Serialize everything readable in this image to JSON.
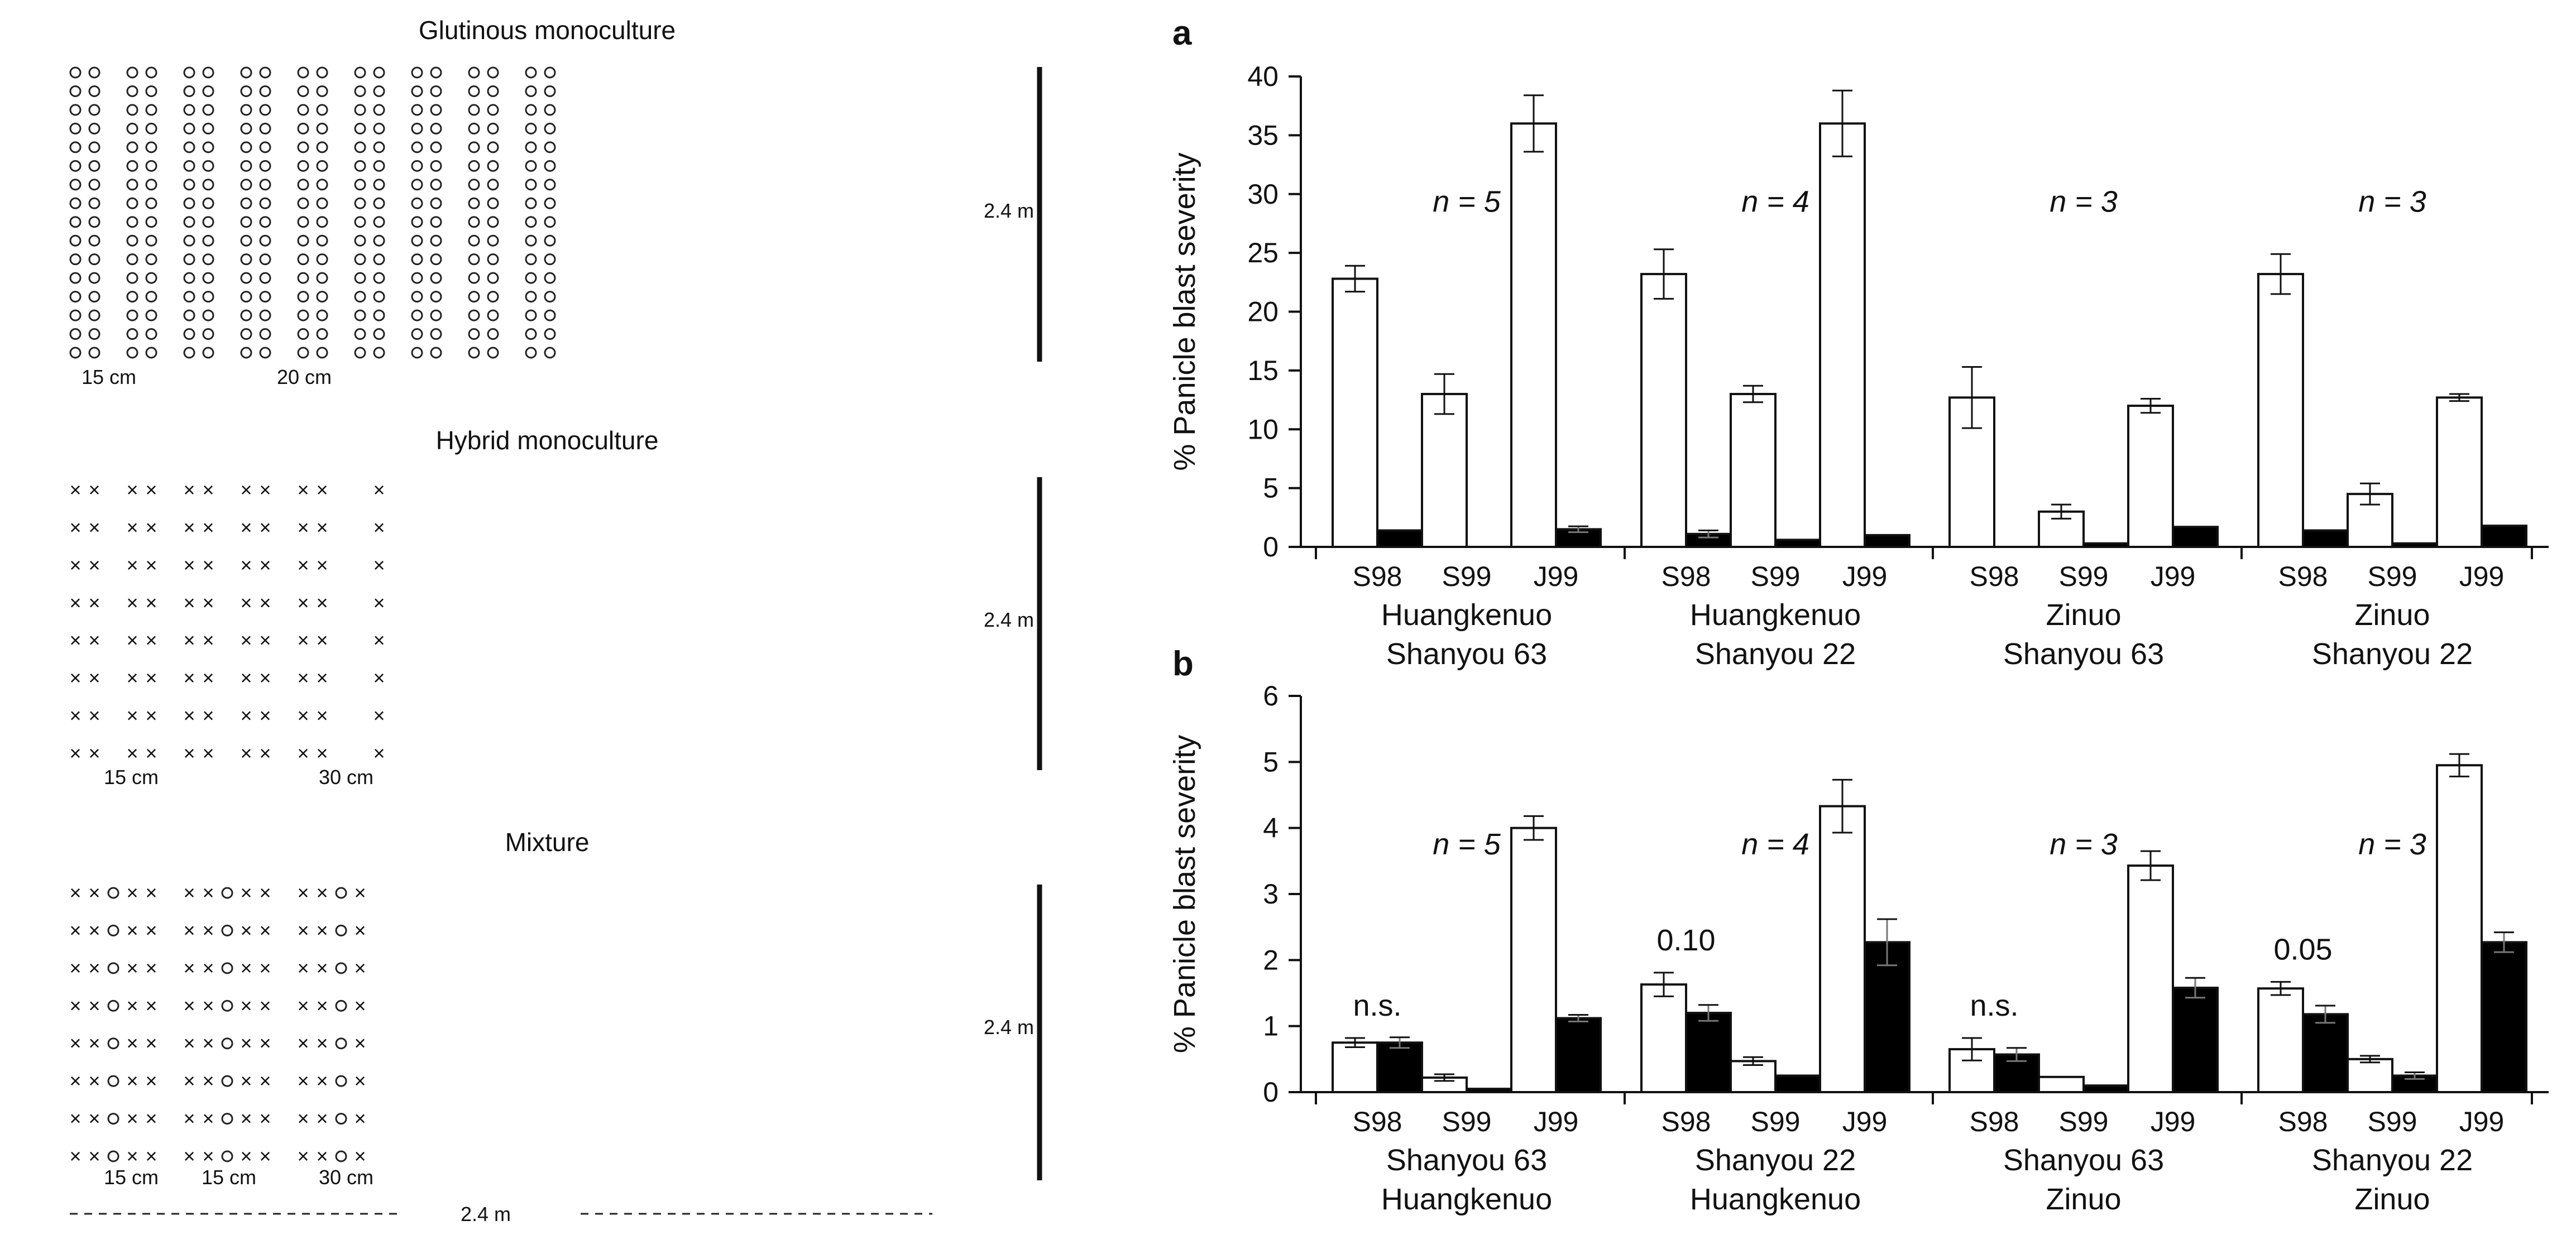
{
  "layout_diagram": {
    "panels": [
      {
        "title": "Glutinous monoculture",
        "scale_label": "2.4 m",
        "spacing_labels": [
          "15 cm",
          "20 cm"
        ],
        "pattern": [
          "o",
          "o",
          "",
          "o",
          "o",
          "",
          "o",
          "o",
          "",
          "o",
          "o",
          "",
          "o",
          "o",
          "",
          "o",
          "o",
          "",
          "o",
          "o",
          "",
          "o",
          "o",
          "",
          "o",
          "o"
        ],
        "rows": 16
      },
      {
        "title": "Hybrid monoculture",
        "scale_label": "2.4 m",
        "spacing_labels": [
          "15 cm",
          "30 cm"
        ],
        "pattern": [
          "x",
          "x",
          "",
          "x",
          "x",
          "",
          "x",
          "x",
          "",
          "x",
          "x",
          "",
          "x",
          "x",
          "",
          "",
          "x"
        ],
        "rows": 8
      },
      {
        "title": "Mixture",
        "scale_label": "2.4 m",
        "spacing_labels": [
          "15 cm",
          "15 cm",
          "30 cm"
        ],
        "pattern": [
          "x",
          "x",
          "o",
          "x",
          "x",
          "",
          "x",
          "x",
          "o",
          "x",
          "x",
          "",
          "x",
          "x",
          "o",
          "x"
        ],
        "rows": 8,
        "bottom_label": "2.4 m"
      }
    ]
  },
  "chart_data": [
    {
      "type": "bar",
      "panel_label": "a",
      "ylabel": "% Panicle blast severity",
      "ylim": [
        0,
        40
      ],
      "yticks": [
        0,
        5,
        10,
        15,
        20,
        25,
        30,
        35,
        40
      ],
      "series": [
        {
          "name": "",
          "color": "#ffffff"
        },
        {
          "name": "",
          "color": "#000000"
        }
      ],
      "groups": [
        {
          "label_lines": [
            "Huangkenuo",
            "Shanyou 63"
          ],
          "n_label": "n = 5",
          "annotation": "",
          "subgroups": [
            {
              "label": "S98",
              "values": [
                22.8,
                1.4
              ],
              "errors": [
                1.1,
                0.0
              ]
            },
            {
              "label": "S99",
              "values": [
                13.0,
                0.0
              ],
              "errors": [
                1.7,
                0.0
              ]
            },
            {
              "label": "J99",
              "values": [
                36.0,
                1.5
              ],
              "errors": [
                2.4,
                0.25
              ]
            }
          ]
        },
        {
          "label_lines": [
            "Huangkenuo",
            "Shanyou 22"
          ],
          "n_label": "n = 4",
          "annotation": "",
          "subgroups": [
            {
              "label": "S98",
              "values": [
                23.2,
                1.1
              ],
              "errors": [
                2.1,
                0.3
              ]
            },
            {
              "label": "S99",
              "values": [
                13.0,
                0.6
              ],
              "errors": [
                0.7,
                0.0
              ]
            },
            {
              "label": "J99",
              "values": [
                36.0,
                1.0
              ],
              "errors": [
                2.8,
                0.0
              ]
            }
          ]
        },
        {
          "label_lines": [
            "Zinuo",
            "Shanyou 63"
          ],
          "n_label": "n = 3",
          "annotation": "",
          "subgroups": [
            {
              "label": "S98",
              "values": [
                12.7,
                0.0
              ],
              "errors": [
                2.6,
                0.0
              ]
            },
            {
              "label": "S99",
              "values": [
                3.0,
                0.3
              ],
              "errors": [
                0.6,
                0.0
              ]
            },
            {
              "label": "J99",
              "values": [
                12.0,
                1.7
              ],
              "errors": [
                0.6,
                0.0
              ]
            }
          ]
        },
        {
          "label_lines": [
            "Zinuo",
            "Shanyou 22"
          ],
          "n_label": "n = 3",
          "annotation": "",
          "subgroups": [
            {
              "label": "S98",
              "values": [
                23.2,
                1.4
              ],
              "errors": [
                1.7,
                0.0
              ]
            },
            {
              "label": "S99",
              "values": [
                4.5,
                0.3
              ],
              "errors": [
                0.9,
                0.0
              ]
            },
            {
              "label": "J99",
              "values": [
                12.7,
                1.8
              ],
              "errors": [
                0.3,
                0.0
              ]
            }
          ]
        }
      ]
    },
    {
      "type": "bar",
      "panel_label": "b",
      "ylabel": "% Panicle blast severity",
      "ylim": [
        0,
        6
      ],
      "yticks": [
        0,
        1,
        2,
        3,
        4,
        5,
        6
      ],
      "series": [
        {
          "name": "",
          "color": "#ffffff"
        },
        {
          "name": "",
          "color": "#000000"
        }
      ],
      "groups": [
        {
          "label_lines": [
            "Shanyou 63",
            "Huangkenuo"
          ],
          "n_label": "n = 5",
          "annotation": "n.s.",
          "subgroups": [
            {
              "label": "S98",
              "values": [
                0.75,
                0.75
              ],
              "errors": [
                0.07,
                0.08
              ]
            },
            {
              "label": "S99",
              "values": [
                0.22,
                0.05
              ],
              "errors": [
                0.05,
                0.0
              ]
            },
            {
              "label": "J99",
              "values": [
                4.0,
                1.12
              ],
              "errors": [
                0.18,
                0.05
              ]
            }
          ]
        },
        {
          "label_lines": [
            "Shanyou 22",
            "Huangkenuo"
          ],
          "n_label": "n = 4",
          "annotation": "0.10",
          "subgroups": [
            {
              "label": "S98",
              "values": [
                1.63,
                1.2
              ],
              "errors": [
                0.18,
                0.12
              ]
            },
            {
              "label": "S99",
              "values": [
                0.47,
                0.25
              ],
              "errors": [
                0.06,
                0.0
              ]
            },
            {
              "label": "J99",
              "values": [
                4.33,
                2.27
              ],
              "errors": [
                0.4,
                0.35
              ]
            }
          ]
        },
        {
          "label_lines": [
            "Shanyou 63",
            "Zinuo"
          ],
          "n_label": "n = 3",
          "annotation": "n.s.",
          "subgroups": [
            {
              "label": "S98",
              "values": [
                0.65,
                0.57
              ],
              "errors": [
                0.17,
                0.1
              ]
            },
            {
              "label": "S99",
              "values": [
                0.23,
                0.1
              ],
              "errors": [
                0.0,
                0.0
              ]
            },
            {
              "label": "J99",
              "values": [
                3.43,
                1.58
              ],
              "errors": [
                0.22,
                0.15
              ]
            }
          ]
        },
        {
          "label_lines": [
            "Shanyou 22",
            "Zinuo"
          ],
          "n_label": "n = 3",
          "annotation": "0.05",
          "subgroups": [
            {
              "label": "S98",
              "values": [
                1.57,
                1.18
              ],
              "errors": [
                0.1,
                0.13
              ]
            },
            {
              "label": "S99",
              "values": [
                0.5,
                0.25
              ],
              "errors": [
                0.05,
                0.05
              ]
            },
            {
              "label": "J99",
              "values": [
                4.95,
                2.27
              ],
              "errors": [
                0.17,
                0.15
              ]
            }
          ]
        }
      ]
    }
  ]
}
